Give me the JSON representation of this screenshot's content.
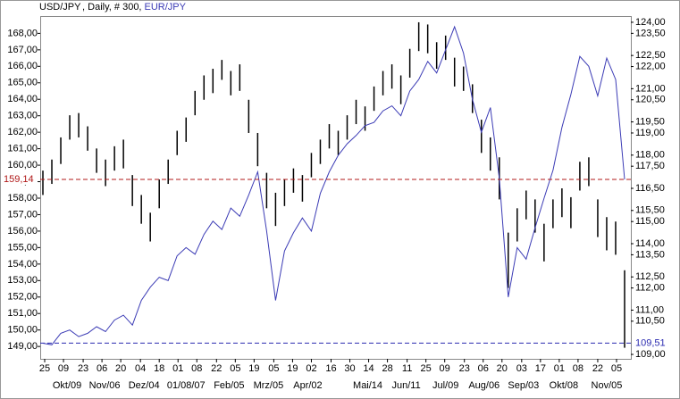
{
  "chart_data": {
    "type": "combo",
    "title": ", Daily, # 300,",
    "xlim": [
      -0.3,
      65.7
    ],
    "xticks": [
      {
        "value": 0.2,
        "label": "25"
      },
      {
        "value": 2.3,
        "label": "09"
      },
      {
        "value": 4.5,
        "label": "23"
      },
      {
        "value": 6.6,
        "label": "06"
      },
      {
        "value": 8.7,
        "label": "20"
      },
      {
        "value": 10.9,
        "label": "04"
      },
      {
        "value": 13.0,
        "label": "18"
      },
      {
        "value": 15.1,
        "label": "01"
      },
      {
        "value": 17.2,
        "label": "08"
      },
      {
        "value": 19.4,
        "label": "22"
      },
      {
        "value": 21.5,
        "label": "05"
      },
      {
        "value": 23.6,
        "label": "19"
      },
      {
        "value": 25.8,
        "label": "05"
      },
      {
        "value": 27.9,
        "label": "19"
      },
      {
        "value": 30.0,
        "label": "02"
      },
      {
        "value": 32.2,
        "label": "16"
      },
      {
        "value": 34.3,
        "label": "30"
      },
      {
        "value": 36.4,
        "label": "14"
      },
      {
        "value": 38.5,
        "label": "28"
      },
      {
        "value": 40.7,
        "label": "11"
      },
      {
        "value": 42.8,
        "label": "25"
      },
      {
        "value": 44.9,
        "label": "09"
      },
      {
        "value": 47.1,
        "label": "23"
      },
      {
        "value": 49.2,
        "label": "06"
      },
      {
        "value": 51.3,
        "label": "20"
      },
      {
        "value": 53.5,
        "label": "03"
      },
      {
        "value": 55.6,
        "label": "17"
      },
      {
        "value": 57.7,
        "label": "01"
      },
      {
        "value": 59.8,
        "label": "08"
      },
      {
        "value": 62.0,
        "label": "22"
      },
      {
        "value": 64.1,
        "label": "05"
      }
    ],
    "month_labels": [
      {
        "value": 2.7,
        "label": "Okt/09"
      },
      {
        "value": 6.9,
        "label": "Nov/06"
      },
      {
        "value": 11.3,
        "label": "Dez/04"
      },
      {
        "value": 16.0,
        "label": "01/08/07"
      },
      {
        "value": 20.8,
        "label": "Feb/05"
      },
      {
        "value": 25.2,
        "label": "Mrz/05"
      },
      {
        "value": 29.6,
        "label": "Apr/02"
      },
      {
        "value": 36.3,
        "label": "Mai/14"
      },
      {
        "value": 40.6,
        "label": "Jun/11"
      },
      {
        "value": 45.0,
        "label": "Jul/09"
      },
      {
        "value": 49.3,
        "label": "Aug/06"
      },
      {
        "value": 53.7,
        "label": "Sep/03"
      },
      {
        "value": 58.2,
        "label": "Okt/08"
      },
      {
        "value": 63.0,
        "label": "Nov/05"
      }
    ],
    "ylim": [
      148.25,
      169.05
    ],
    "yticks": [
      {
        "value": 149,
        "label": "149,00"
      },
      {
        "value": 150,
        "label": "150,00"
      },
      {
        "value": 151,
        "label": "151,00"
      },
      {
        "value": 152,
        "label": "152,00"
      },
      {
        "value": 153,
        "label": "153,00"
      },
      {
        "value": 154,
        "label": "154,00"
      },
      {
        "value": 155,
        "label": "155,00"
      },
      {
        "value": 156,
        "label": "156,00"
      },
      {
        "value": 157,
        "label": "157,00"
      },
      {
        "value": 158,
        "label": "158,00"
      },
      {
        "value": 159,
        "label": "159,00"
      },
      {
        "value": 160,
        "label": "160,00"
      },
      {
        "value": 161,
        "label": "161,00"
      },
      {
        "value": 162,
        "label": "162,00"
      },
      {
        "value": 163,
        "label": "163,00"
      },
      {
        "value": 164,
        "label": "164,00"
      },
      {
        "value": 165,
        "label": "165,00"
      },
      {
        "value": 166,
        "label": "166,00"
      },
      {
        "value": 167,
        "label": "167,00"
      },
      {
        "value": 168,
        "label": "168,00"
      }
    ],
    "y2lim": [
      108.8,
      124.28
    ],
    "y2ticks": [
      {
        "value": 109,
        "label": "109,00"
      },
      {
        "value": 110.5,
        "label": "110,50"
      },
      {
        "value": 111,
        "label": "111,00"
      },
      {
        "value": 112,
        "label": "112,00"
      },
      {
        "value": 112.5,
        "label": "112,50"
      },
      {
        "value": 113.5,
        "label": "113,50"
      },
      {
        "value": 114,
        "label": "114,00"
      },
      {
        "value": 115,
        "label": "115,00"
      },
      {
        "value": 115.5,
        "label": "115,50"
      },
      {
        "value": 116.5,
        "label": "116,50"
      },
      {
        "value": 117.5,
        "label": "117,50"
      },
      {
        "value": 118,
        "label": "118,00"
      },
      {
        "value": 119,
        "label": "119,00"
      },
      {
        "value": 119.5,
        "label": "119,50"
      },
      {
        "value": 120.5,
        "label": "120,50"
      },
      {
        "value": 121,
        "label": "121,00"
      },
      {
        "value": 122,
        "label": "122,00"
      },
      {
        "value": 122.5,
        "label": "122,50"
      },
      {
        "value": 123.5,
        "label": "123,50"
      },
      {
        "value": 124,
        "label": "124,00"
      }
    ],
    "series": [
      {
        "name": "USD/JPY",
        "color": "#000000",
        "axis": "y2",
        "marker_color": "#2a2ab0",
        "last": 109.51,
        "last_label": "109,51",
        "high": [
          117.3,
          117.8,
          118.8,
          119.8,
          119.9,
          119.3,
          118.3,
          117.8,
          118.4,
          118.7,
          117.1,
          116.2,
          115.4,
          116.9,
          117.8,
          119.1,
          119.7,
          120.9,
          121.6,
          121.9,
          122.3,
          121.8,
          122.1,
          120.5,
          119.0,
          117.2,
          116.3,
          116.9,
          117.4,
          117.1,
          118.1,
          118.7,
          119.4,
          119.1,
          119.8,
          120.5,
          120.2,
          121.1,
          121.8,
          122.1,
          121.6,
          122.8,
          124.0,
          123.9,
          123.1,
          123.4,
          122.4,
          122.0,
          121.2,
          119.6,
          118.8,
          117.9,
          114.5,
          115.6,
          116.4,
          116.0,
          114.9,
          116.0,
          116.5,
          116.1,
          117.7,
          117.9,
          116.0,
          115.2,
          115.0,
          112.8
        ],
        "low": [
          116.2,
          116.7,
          117.6,
          118.7,
          118.8,
          118.2,
          117.2,
          116.6,
          117.3,
          117.4,
          115.7,
          114.9,
          114.1,
          115.6,
          116.7,
          118.0,
          118.6,
          119.8,
          120.5,
          120.8,
          121.4,
          120.7,
          120.9,
          119.0,
          117.5,
          115.6,
          114.8,
          115.7,
          116.3,
          115.9,
          117.0,
          117.6,
          118.3,
          118.0,
          118.7,
          119.4,
          119.1,
          120.0,
          120.7,
          121.0,
          120.3,
          121.5,
          122.7,
          122.6,
          121.9,
          122.3,
          121.1,
          120.9,
          119.9,
          118.1,
          117.3,
          116.0,
          112.0,
          114.1,
          115.1,
          114.5,
          113.2,
          114.7,
          115.2,
          114.7,
          116.4,
          116.6,
          114.3,
          113.7,
          113.5,
          109.3
        ]
      },
      {
        "name": "EUR/JPY",
        "color": "#3b3bb5",
        "axis": "y",
        "marker_color": "#b01818",
        "last_label": "159,14",
        "values": [
          149.2,
          149.1,
          149.8,
          150.0,
          149.6,
          149.8,
          150.2,
          149.9,
          150.6,
          150.9,
          150.3,
          151.8,
          152.6,
          153.2,
          153.0,
          154.5,
          155.0,
          154.6,
          155.8,
          156.6,
          156.1,
          157.4,
          156.9,
          158.2,
          159.6,
          156.0,
          151.8,
          154.8,
          155.9,
          156.8,
          156.0,
          158.3,
          159.6,
          160.6,
          161.3,
          161.8,
          162.4,
          162.6,
          163.3,
          163.6,
          163.0,
          164.5,
          165.2,
          166.3,
          165.6,
          167.0,
          168.4,
          166.8,
          164.0,
          162.0,
          163.5,
          159.2,
          152.0,
          155.0,
          154.3,
          156.2,
          158.0,
          159.7,
          162.3,
          164.3,
          166.6,
          166.0,
          164.2,
          166.5,
          165.2,
          159.14
        ]
      }
    ]
  }
}
